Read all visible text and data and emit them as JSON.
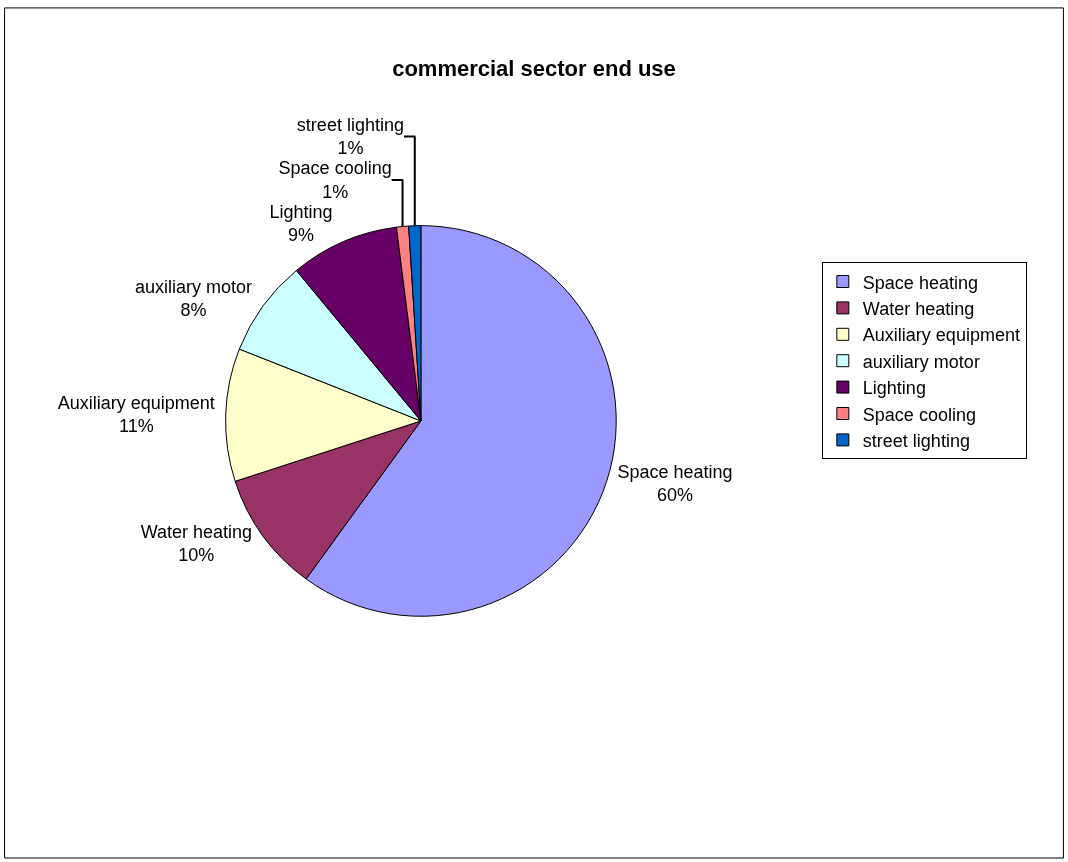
{
  "chart_data": {
    "type": "pie",
    "title": "commercial sector end use",
    "categories": [
      "Space heating",
      "Water heating",
      "Auxiliary equipment",
      "auxiliary motor",
      "Lighting",
      "Space cooling",
      "street lighting"
    ],
    "values": [
      60,
      10,
      11,
      8,
      9,
      1,
      1
    ],
    "value_labels": [
      "60%",
      "10%",
      "11%",
      "8%",
      "9%",
      "1%",
      "1%"
    ],
    "colors": [
      "#9999ff",
      "#993366",
      "#ffffcc",
      "#ccffff",
      "#660066",
      "#ff8080",
      "#0066cc"
    ],
    "legend": "right"
  }
}
